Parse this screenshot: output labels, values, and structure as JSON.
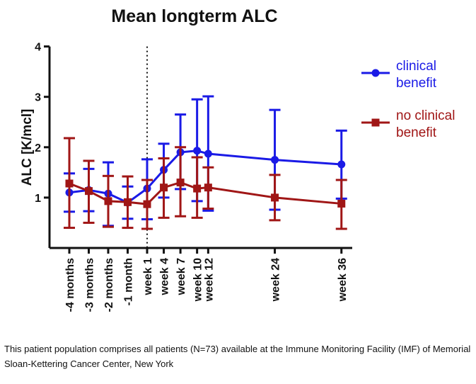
{
  "chart_data": {
    "type": "line",
    "title": "Mean longterm ALC",
    "ylabel": "ALC [K/mcl]",
    "xlabel": "",
    "ylim": [
      0,
      4
    ],
    "yticks": [
      1,
      2,
      3,
      4
    ],
    "x": [
      -4,
      -3,
      -2,
      -1,
      1,
      4,
      7,
      10,
      12,
      24,
      36
    ],
    "x_tick_labels": [
      "-4 months",
      "-3 months",
      "-2 months",
      "-1 month",
      "week 1",
      "week 4",
      "week 7",
      "week 10",
      "week 12",
      "week 24",
      "week 36"
    ],
    "reference_line_x": 1,
    "legend_position": "right",
    "grid": false,
    "series": [
      {
        "name": "clinical benefit",
        "color": "#1a1ae6",
        "marker": "circle",
        "values": [
          1.1,
          1.15,
          1.08,
          0.9,
          1.18,
          1.55,
          1.9,
          1.93,
          1.87,
          1.75,
          1.66
        ],
        "err_low": [
          0.72,
          0.73,
          0.44,
          0.58,
          0.57,
          1.0,
          1.17,
          0.93,
          0.74,
          0.76,
          0.98
        ],
        "err_high": [
          1.48,
          1.57,
          1.7,
          1.22,
          1.76,
          2.07,
          2.65,
          2.95,
          3.01,
          2.74,
          2.33
        ]
      },
      {
        "name": "no clinical benefit",
        "color": "#a01616",
        "marker": "square",
        "values": [
          1.28,
          1.13,
          0.93,
          0.91,
          0.87,
          1.2,
          1.3,
          1.18,
          1.2,
          1.0,
          0.88
        ],
        "err_low": [
          0.4,
          0.5,
          0.42,
          0.4,
          0.38,
          0.6,
          0.63,
          0.6,
          0.78,
          0.55,
          0.38
        ],
        "err_high": [
          2.18,
          1.73,
          1.43,
          1.42,
          1.35,
          1.78,
          2.0,
          1.8,
          1.6,
          1.45,
          1.35
        ]
      }
    ]
  },
  "footnote": "This patient population comprises all patients (N=73) available at the Immune Monitoring Facility (IMF) of Memorial Sloan-Kettering Cancer Center, New York"
}
